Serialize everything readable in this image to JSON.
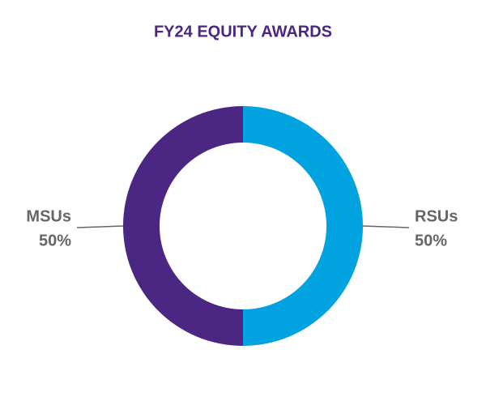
{
  "chart_data": {
    "type": "donut",
    "title": "FY24 EQUITY AWARDS",
    "categories": [
      "RSUs",
      "MSUs"
    ],
    "values": [
      50,
      50
    ],
    "value_labels": [
      "50%",
      "50%"
    ],
    "colors": [
      "#00a3e0",
      "#4b2683"
    ]
  }
}
